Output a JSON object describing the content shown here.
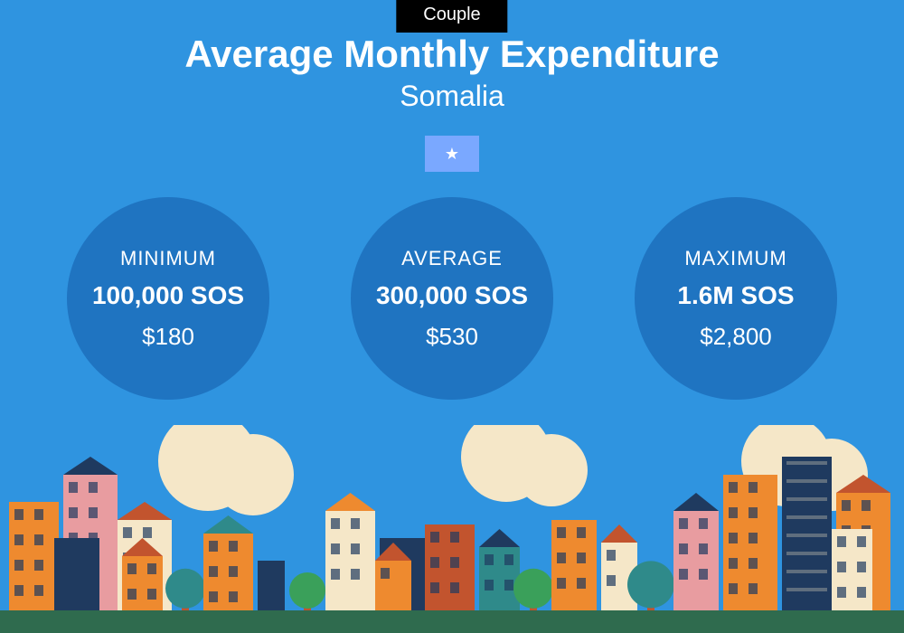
{
  "background_color": "#2f94e0",
  "badge": {
    "label": "Couple",
    "bg": "#000000",
    "fg": "#ffffff"
  },
  "title": "Average Monthly Expenditure",
  "subtitle": "Somalia",
  "flag": {
    "bg": "#7aa8ff",
    "star_color": "#ffffff"
  },
  "circle_color": "#1f74c1",
  "circles": [
    {
      "label": "MINIMUM",
      "main": "100,000 SOS",
      "sub": "$180"
    },
    {
      "label": "AVERAGE",
      "main": "300,000 SOS",
      "sub": "$530"
    },
    {
      "label": "MAXIMUM",
      "main": "1.6M SOS",
      "sub": "$2,800"
    }
  ],
  "city_palette": {
    "ground": "#2f6b4e",
    "cream": "#f5e7c8",
    "orange": "#ee8a2f",
    "rust": "#c2542e",
    "navy": "#1f3a5f",
    "teal": "#2f8a8a",
    "pink": "#e89ca0",
    "green": "#3aa05a"
  }
}
